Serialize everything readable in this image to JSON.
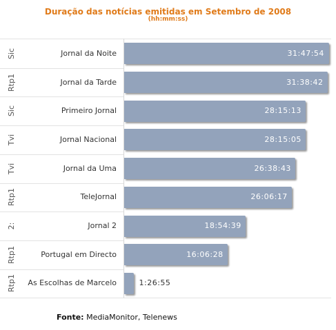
{
  "title": "Duração das notícias emitidas em Setembro de 2008",
  "subtitle": "(hh:mm:ss)",
  "source": {
    "label": "Fonte:",
    "text": "MediaMonitor, Telenews"
  },
  "colors": {
    "title": "#e07b1a",
    "bar": "#93a3bb"
  },
  "chart_data": {
    "type": "bar",
    "orientation": "horizontal",
    "title": "Duração das notícias emitidas em Setembro de 2008",
    "subtitle": "(hh:mm:ss)",
    "xlabel": "",
    "ylabel": "",
    "grid": false,
    "legend": "none",
    "categories": [
      "Jornal da Noite",
      "Jornal da Tarde",
      "Primeiro Jornal",
      "Jornal Nacional",
      "Jornal da Uma",
      "TeleJornal",
      "Jornal 2",
      "Portugal em Directo",
      "As Escolhas de Marcelo"
    ],
    "groups": [
      "Sic",
      "Rtp1",
      "Sic",
      "Tvi",
      "Tvi",
      "Rtp1",
      "2:",
      "Rtp1",
      "Rtp1"
    ],
    "labels": [
      "31:47:54",
      "31:38:42",
      "28:15:13",
      "28:15:05",
      "26:38:43",
      "26:06:17",
      "18:54:39",
      "16:06:28",
      "1:26:55"
    ],
    "values_seconds": [
      114474,
      113922,
      101713,
      101705,
      95923,
      93977,
      68079,
      57988,
      5215
    ]
  }
}
